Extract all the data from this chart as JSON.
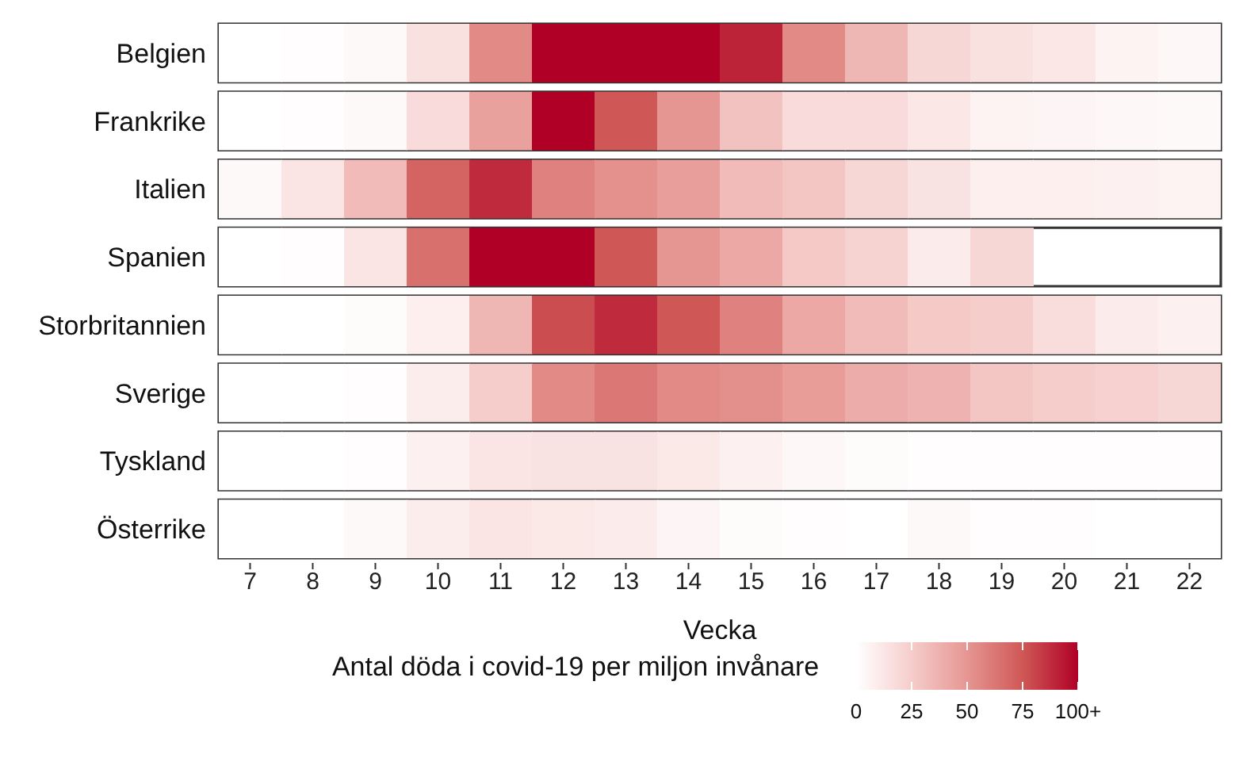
{
  "chart_data": {
    "type": "heatmap",
    "xlabel": "Vecka",
    "clabel": "Antal döda i covid-19 per miljon invånare",
    "categories": [
      "7",
      "8",
      "9",
      "10",
      "11",
      "12",
      "13",
      "14",
      "15",
      "16",
      "17",
      "18",
      "19",
      "20",
      "21",
      "22"
    ],
    "y_categories": [
      "Belgien",
      "Frankrike",
      "Italien",
      "Spanien",
      "Storbritannien",
      "Sverige",
      "Tyskland",
      "Österrike"
    ],
    "cells": [
      [
        0,
        1,
        3,
        15,
        55,
        100,
        100,
        100,
        90,
        55,
        35,
        20,
        15,
        12,
        6,
        4
      ],
      [
        0,
        1,
        3,
        18,
        45,
        100,
        75,
        50,
        30,
        18,
        18,
        12,
        6,
        5,
        4,
        3
      ],
      [
        3,
        13,
        33,
        70,
        88,
        58,
        52,
        46,
        33,
        28,
        20,
        14,
        8,
        8,
        7,
        6
      ],
      [
        0,
        1,
        13,
        65,
        100,
        100,
        75,
        50,
        42,
        27,
        22,
        10,
        20,
        null,
        null,
        null
      ],
      [
        0,
        0,
        2,
        8,
        35,
        78,
        88,
        75,
        58,
        42,
        33,
        27,
        25,
        17,
        10,
        7
      ],
      [
        0,
        0,
        1,
        9,
        25,
        55,
        62,
        55,
        53,
        47,
        40,
        37,
        28,
        25,
        23,
        20
      ],
      [
        0,
        0,
        1,
        7,
        13,
        14,
        14,
        11,
        7,
        4,
        2,
        1,
        1,
        1,
        1,
        1
      ],
      [
        0,
        0,
        3,
        9,
        13,
        11,
        10,
        5,
        2,
        1,
        0,
        3,
        1,
        1,
        0,
        0
      ]
    ],
    "clim": [
      0,
      100
    ],
    "cticks": [
      0,
      25,
      50,
      75,
      {
        "value": 100,
        "label": "100+"
      }
    ]
  }
}
